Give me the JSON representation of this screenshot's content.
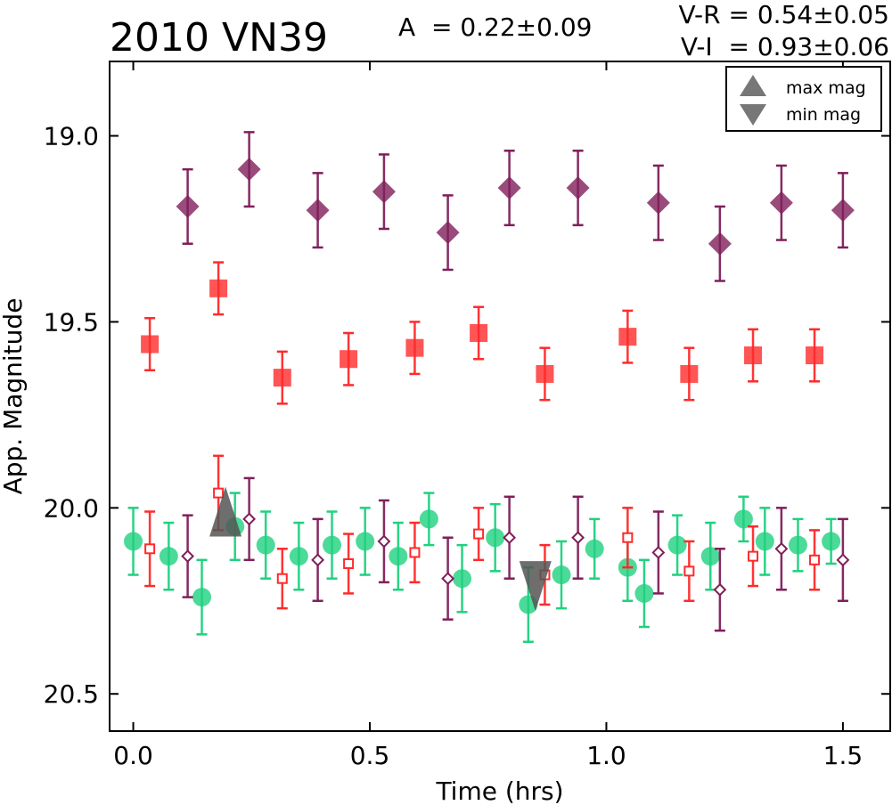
{
  "chart_data": {
    "type": "scatter",
    "title": "2010 VN39",
    "annotations": {
      "amplitude": "A  = 0.22±0.09",
      "vr": "V-R = 0.54±0.05",
      "vi": "V-I  = 0.93±0.06"
    },
    "xlabel": "Time (hrs)",
    "ylabel": "App. Magnitude",
    "xlim": [
      -0.05,
      1.6
    ],
    "ylim": [
      20.6,
      18.8
    ],
    "y_inverted": true,
    "xticks": [
      0.0,
      0.5,
      1.0,
      1.5
    ],
    "xtick_labels": [
      "0.0",
      "0.5",
      "1.0",
      "1.5"
    ],
    "yticks": [
      19.0,
      19.5,
      20.0,
      20.5
    ],
    "ytick_labels": [
      "19.0",
      "19.5",
      "20.0",
      "20.5"
    ],
    "grid": false,
    "legend": {
      "position": "top-right",
      "entries": [
        "max mag",
        "min mag"
      ]
    },
    "series": [
      {
        "marker": "diamond",
        "filled": true,
        "color": "#7f1f5a",
        "alpha": 0.8,
        "x": [
          0.115,
          0.245,
          0.39,
          0.53,
          0.665,
          0.795,
          0.94,
          1.11,
          1.24,
          1.37,
          1.5
        ],
        "y": [
          19.19,
          19.09,
          19.2,
          19.15,
          19.26,
          19.14,
          19.14,
          19.18,
          19.29,
          19.18,
          19.2
        ],
        "err": [
          0.1,
          0.1,
          0.1,
          0.1,
          0.1,
          0.1,
          0.1,
          0.1,
          0.1,
          0.1,
          0.1
        ]
      },
      {
        "marker": "square",
        "filled": true,
        "color": "#ff2a2a",
        "alpha": 0.8,
        "x": [
          0.035,
          0.18,
          0.315,
          0.455,
          0.595,
          0.73,
          0.87,
          1.045,
          1.175,
          1.31,
          1.44
        ],
        "y": [
          19.56,
          19.41,
          19.65,
          19.6,
          19.57,
          19.53,
          19.64,
          19.54,
          19.64,
          19.59,
          19.59
        ],
        "err": [
          0.07,
          0.07,
          0.07,
          0.07,
          0.07,
          0.07,
          0.07,
          0.07,
          0.07,
          0.07,
          0.07
        ]
      },
      {
        "marker": "circle",
        "filled": true,
        "color": "#1fd17f",
        "alpha": 0.8,
        "x": [
          0.0,
          0.075,
          0.145,
          0.215,
          0.28,
          0.35,
          0.42,
          0.49,
          0.56,
          0.625,
          0.695,
          0.765,
          0.835,
          0.905,
          0.975,
          1.045,
          1.08,
          1.15,
          1.22,
          1.29,
          1.335,
          1.405,
          1.475
        ],
        "y": [
          20.09,
          20.13,
          20.24,
          20.05,
          20.1,
          20.13,
          20.1,
          20.09,
          20.13,
          20.03,
          20.19,
          20.08,
          20.26,
          20.18,
          20.11,
          20.16,
          20.23,
          20.1,
          20.13,
          20.03,
          20.09,
          20.1,
          20.09
        ],
        "err": [
          0.09,
          0.09,
          0.1,
          0.09,
          0.09,
          0.09,
          0.09,
          0.09,
          0.09,
          0.07,
          0.09,
          0.09,
          0.1,
          0.09,
          0.08,
          0.09,
          0.09,
          0.08,
          0.09,
          0.06,
          0.09,
          0.07,
          0.06
        ]
      },
      {
        "marker": "square",
        "filled": false,
        "color": "#ff2a2a",
        "alpha": 0.8,
        "x": [
          0.035,
          0.18,
          0.315,
          0.455,
          0.595,
          0.73,
          0.87,
          1.045,
          1.175,
          1.31,
          1.44
        ],
        "y": [
          20.11,
          19.96,
          20.19,
          20.15,
          20.12,
          20.07,
          20.18,
          20.08,
          20.17,
          20.13,
          20.14
        ],
        "err": [
          0.1,
          0.1,
          0.08,
          0.08,
          0.08,
          0.07,
          0.08,
          0.08,
          0.08,
          0.08,
          0.08
        ]
      },
      {
        "marker": "diamond",
        "filled": false,
        "color": "#7f1f5a",
        "alpha": 0.8,
        "x": [
          0.115,
          0.245,
          0.39,
          0.53,
          0.665,
          0.795,
          0.94,
          1.11,
          1.24,
          1.37,
          1.5
        ],
        "y": [
          20.13,
          20.03,
          20.14,
          20.09,
          20.19,
          20.08,
          20.08,
          20.12,
          20.22,
          20.11,
          20.14
        ],
        "err": [
          0.11,
          0.11,
          0.11,
          0.11,
          0.11,
          0.11,
          0.11,
          0.11,
          0.11,
          0.11,
          0.11
        ]
      }
    ],
    "markers": [
      {
        "label": "max mag",
        "shape": "triangle-up",
        "color": "#555555",
        "x": 0.195,
        "y": 20.01
      },
      {
        "label": "min mag",
        "shape": "triangle-down",
        "color": "#555555",
        "x": 0.85,
        "y": 20.21
      }
    ]
  }
}
